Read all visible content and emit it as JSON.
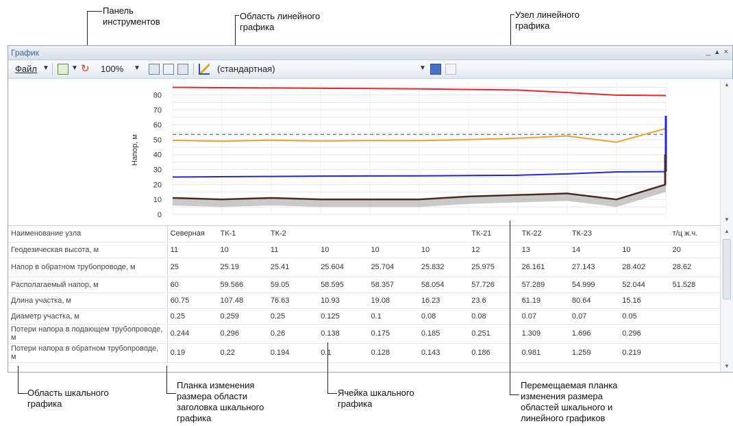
{
  "callouts": {
    "toolbar_panel": "Панель\nинструментов",
    "chart_area": "Область линейного\nграфика",
    "chart_node": "Узел линейного\nграфика",
    "scale_area": "Область шкального\nграфика",
    "header_resize": "Планка изменения\nразмера области\nзаголовка шкального\nграфика",
    "scale_cell": "Ячейка шкального\nграфика",
    "split_bar": "Перемещаемая планка\nизменения размера\nобластей шкального и\nлинейного графиков"
  },
  "window": {
    "title": "График",
    "buttons": "_ ▴ ×"
  },
  "toolbar": {
    "file_label": "Файл",
    "zoom_value": "100%",
    "style_value": "(стандартная)",
    "icons": [
      "export-icon",
      "refresh-icon",
      "print-icon",
      "print-preview-icon",
      "page-setup-icon",
      "chart-style-icon",
      "save-icon",
      "edit-icon"
    ]
  },
  "chart_data": {
    "type": "line",
    "ylabel": "Напор, м",
    "yticks": [
      0,
      10,
      20,
      30,
      40,
      50,
      60,
      70,
      80
    ],
    "ylim": [
      0,
      88
    ],
    "x": [
      0,
      1,
      2,
      3,
      4,
      5,
      6,
      7,
      8,
      9,
      10
    ],
    "series": [
      {
        "color": "#e8262a",
        "values": [
          85,
          84.8,
          84.6,
          84.4,
          84.2,
          84,
          83.6,
          83.2,
          81.5,
          79.8,
          79.5
        ]
      },
      {
        "color": "#f0a030",
        "values": [
          49.5,
          49,
          49.6,
          49.1,
          49.4,
          49.3,
          50.1,
          51,
          52.5,
          48.3,
          57.5
        ]
      },
      {
        "color": "#1e28d8",
        "values": [
          25,
          25.2,
          25.4,
          25.6,
          25.7,
          25.8,
          26,
          26.2,
          27.1,
          28.4,
          28.6
        ]
      },
      {
        "color": "#4a2a22",
        "values": [
          11,
          10,
          11,
          10,
          10,
          10,
          12,
          13,
          14,
          10,
          20
        ]
      }
    ],
    "dashed_level": 53.5,
    "grid": true
  },
  "grid": {
    "columns": [
      "Северная",
      "ТК-1",
      "ТК-2",
      "",
      "",
      "",
      "ТК-21",
      "ТК-22",
      "ТК-23",
      "",
      "т/ц ж.ч."
    ],
    "rows": [
      {
        "label": "Наименование узла",
        "cells": [
          "Северная",
          "ТК-1",
          "ТК-2",
          "",
          "",
          "",
          "ТК-21",
          "ТК-22",
          "ТК-23",
          "",
          "т/ц ж.ч."
        ]
      },
      {
        "label": "Геодезическая высота, м",
        "cells": [
          "11",
          "10",
          "11",
          "10",
          "10",
          "10",
          "12",
          "13",
          "14",
          "10",
          "20"
        ]
      },
      {
        "label": "Напор в обратном трубопроводе, м",
        "cells": [
          "25",
          "25.19",
          "25.41",
          "25.604",
          "25.704",
          "25.832",
          "25.975",
          "26.161",
          "27.143",
          "28.402",
          "28.62"
        ]
      },
      {
        "label": "Располагаемый напор, м",
        "cells": [
          "60",
          "59.566",
          "59.05",
          "58.595",
          "58.357",
          "58.054",
          "57.726",
          "57.289",
          "54.999",
          "52.044",
          "51.528"
        ]
      },
      {
        "label": "Длина участка, м",
        "cells": [
          "60.75",
          "107.48",
          "76.63",
          "10.93",
          "19.08",
          "16.23",
          "23.6",
          "61.19",
          "80.64",
          "15.16",
          ""
        ]
      },
      {
        "label": "Диаметр участка, м",
        "cells": [
          "0.25",
          "0.259",
          "0.25",
          "0.125",
          "0.1",
          "0.08",
          "0.08",
          "0.07",
          "0.07",
          "0.05",
          ""
        ]
      },
      {
        "label": "Потери напора в подающем трубопроводе, м",
        "cells": [
          "0.244",
          "0.296",
          "0.26",
          "0.138",
          "0.175",
          "0.185",
          "0.251",
          "1.309",
          "1.696",
          "0.296",
          ""
        ]
      },
      {
        "label": "Потери напора в обратном трубопроводе, м",
        "cells": [
          "0.19",
          "0.22",
          "0.194",
          "0.1",
          "0.128",
          "0.143",
          "0.186",
          "0.981",
          "1.259",
          "0.219",
          ""
        ]
      }
    ]
  }
}
